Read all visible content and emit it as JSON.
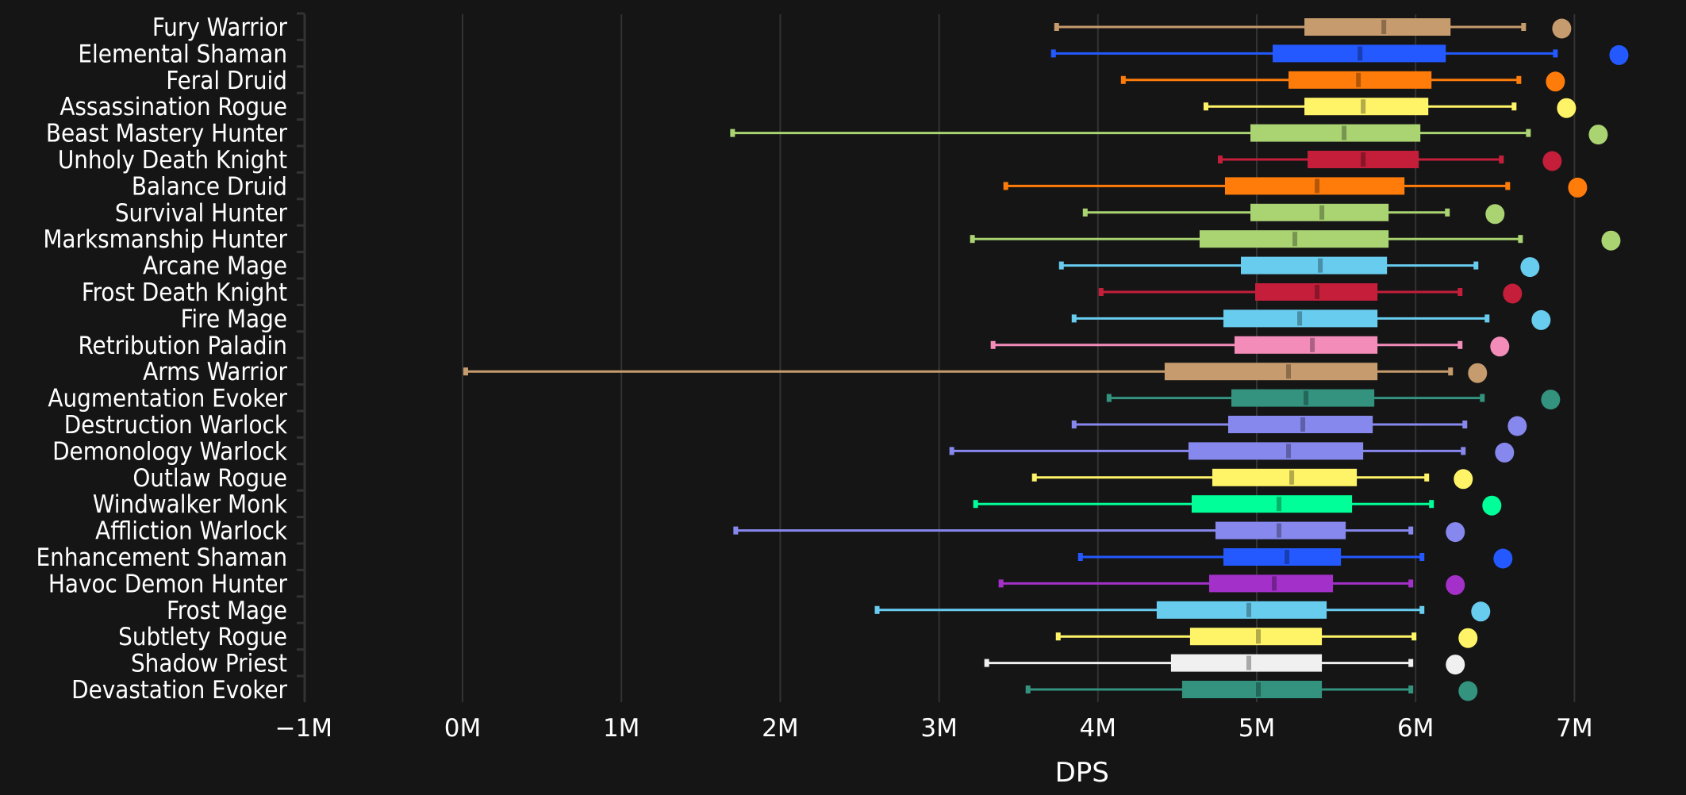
{
  "chart_data": {
    "type": "box",
    "title": "",
    "xlabel": "DPS",
    "ylabel": "",
    "xlim": [
      -1000000,
      7500000
    ],
    "x_ticks": [
      -1000000,
      0,
      1000000,
      2000000,
      3000000,
      4000000,
      5000000,
      6000000,
      7000000
    ],
    "x_tick_labels": [
      "−1M",
      "0M",
      "1M",
      "2M",
      "3M",
      "4M",
      "5M",
      "6M",
      "7M"
    ],
    "grid": "vertical",
    "legend": "none",
    "series": [
      {
        "name": "Fury Warrior",
        "color": "#C69B6D",
        "min": 3740000,
        "q1": 5300000,
        "median": 5800000,
        "q3": 6220000,
        "max": 6680000,
        "outlier": 6920000
      },
      {
        "name": "Elemental Shaman",
        "color": "#2359FF",
        "min": 3720000,
        "q1": 5100000,
        "median": 5650000,
        "q3": 6190000,
        "max": 6880000,
        "outlier": 7280000
      },
      {
        "name": "Feral Druid",
        "color": "#FF7C0A",
        "min": 4160000,
        "q1": 5200000,
        "median": 5640000,
        "q3": 6100000,
        "max": 6650000,
        "outlier": 6880000
      },
      {
        "name": "Assassination Rogue",
        "color": "#FFF468",
        "min": 4680000,
        "q1": 5300000,
        "median": 5670000,
        "q3": 6080000,
        "max": 6620000,
        "outlier": 6950000
      },
      {
        "name": "Beast Mastery Hunter",
        "color": "#AAD372",
        "min": 1700000,
        "q1": 4960000,
        "median": 5550000,
        "q3": 6030000,
        "max": 6710000,
        "outlier": 7150000
      },
      {
        "name": "Unholy Death Knight",
        "color": "#C41E3A",
        "min": 4770000,
        "q1": 5320000,
        "median": 5670000,
        "q3": 6020000,
        "max": 6540000,
        "outlier": 6860000
      },
      {
        "name": "Balance Druid",
        "color": "#FF7C0A",
        "min": 3420000,
        "q1": 4800000,
        "median": 5380000,
        "q3": 5930000,
        "max": 6580000,
        "outlier": 7020000
      },
      {
        "name": "Survival Hunter",
        "color": "#AAD372",
        "min": 3920000,
        "q1": 4960000,
        "median": 5410000,
        "q3": 5830000,
        "max": 6200000,
        "outlier": 6500000
      },
      {
        "name": "Marksmanship Hunter",
        "color": "#AAD372",
        "min": 3210000,
        "q1": 4640000,
        "median": 5240000,
        "q3": 5830000,
        "max": 6660000,
        "outlier": 7230000
      },
      {
        "name": "Arcane Mage",
        "color": "#68CCEF",
        "min": 3770000,
        "q1": 4900000,
        "median": 5400000,
        "q3": 5820000,
        "max": 6380000,
        "outlier": 6720000
      },
      {
        "name": "Frost Death Knight",
        "color": "#C41E3A",
        "min": 4020000,
        "q1": 4990000,
        "median": 5380000,
        "q3": 5760000,
        "max": 6280000,
        "outlier": 6610000
      },
      {
        "name": "Fire Mage",
        "color": "#68CCEF",
        "min": 3850000,
        "q1": 4790000,
        "median": 5270000,
        "q3": 5760000,
        "max": 6450000,
        "outlier": 6790000
      },
      {
        "name": "Retribution Paladin",
        "color": "#F48CBA",
        "min": 3340000,
        "q1": 4860000,
        "median": 5350000,
        "q3": 5760000,
        "max": 6280000,
        "outlier": 6530000
      },
      {
        "name": "Arms Warrior",
        "color": "#C69B6D",
        "min": 20000,
        "q1": 4420000,
        "median": 5200000,
        "q3": 5760000,
        "max": 6220000,
        "outlier": 6390000
      },
      {
        "name": "Augmentation Evoker",
        "color": "#33937F",
        "min": 4070000,
        "q1": 4840000,
        "median": 5310000,
        "q3": 5740000,
        "max": 6420000,
        "outlier": 6850000
      },
      {
        "name": "Destruction Warlock",
        "color": "#8788EE",
        "min": 3850000,
        "q1": 4820000,
        "median": 5290000,
        "q3": 5730000,
        "max": 6310000,
        "outlier": 6640000
      },
      {
        "name": "Demonology Warlock",
        "color": "#8788EE",
        "min": 3080000,
        "q1": 4570000,
        "median": 5200000,
        "q3": 5670000,
        "max": 6300000,
        "outlier": 6560000
      },
      {
        "name": "Outlaw Rogue",
        "color": "#FFF468",
        "min": 3600000,
        "q1": 4720000,
        "median": 5220000,
        "q3": 5630000,
        "max": 6070000,
        "outlier": 6300000
      },
      {
        "name": "Windwalker Monk",
        "color": "#00FF98",
        "min": 3230000,
        "q1": 4590000,
        "median": 5140000,
        "q3": 5600000,
        "max": 6100000,
        "outlier": 6480000
      },
      {
        "name": "Affliction Warlock",
        "color": "#8788EE",
        "min": 1720000,
        "q1": 4740000,
        "median": 5140000,
        "q3": 5560000,
        "max": 5970000,
        "outlier": 6250000
      },
      {
        "name": "Enhancement Shaman",
        "color": "#2359FF",
        "min": 3890000,
        "q1": 4790000,
        "median": 5190000,
        "q3": 5530000,
        "max": 6040000,
        "outlier": 6550000
      },
      {
        "name": "Havoc Demon Hunter",
        "color": "#A330C9",
        "min": 3390000,
        "q1": 4700000,
        "median": 5110000,
        "q3": 5480000,
        "max": 5970000,
        "outlier": 6250000
      },
      {
        "name": "Frost Mage",
        "color": "#68CCEF",
        "min": 2610000,
        "q1": 4370000,
        "median": 4950000,
        "q3": 5440000,
        "max": 6040000,
        "outlier": 6410000
      },
      {
        "name": "Subtlety Rogue",
        "color": "#FFF468",
        "min": 3750000,
        "q1": 4580000,
        "median": 5010000,
        "q3": 5410000,
        "max": 5990000,
        "outlier": 6330000
      },
      {
        "name": "Shadow Priest",
        "color": "#F0F0F0",
        "min": 3300000,
        "q1": 4460000,
        "median": 4950000,
        "q3": 5410000,
        "max": 5970000,
        "outlier": 6250000
      },
      {
        "name": "Devastation Evoker",
        "color": "#33937F",
        "min": 3560000,
        "q1": 4530000,
        "median": 5010000,
        "q3": 5410000,
        "max": 5970000,
        "outlier": 6330000
      }
    ]
  }
}
